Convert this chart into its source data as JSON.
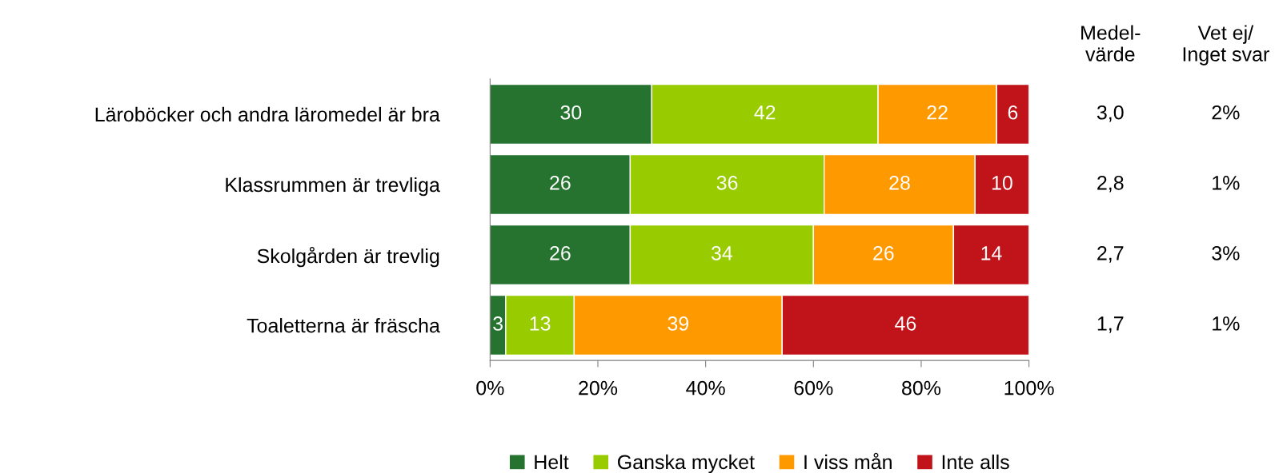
{
  "chart_data": {
    "type": "bar",
    "orientation": "horizontal",
    "stacked": true,
    "categories": [
      "Läroböcker och andra läromedel är bra",
      "Klassrummen är trevliga",
      "Skolgården är trevlig",
      "Toaletterna är fräscha"
    ],
    "series": [
      {
        "name": "Helt",
        "color": "#267330",
        "values": [
          30,
          26,
          26,
          2.9
        ],
        "value_labels": [
          "30",
          "26",
          "26",
          "3"
        ]
      },
      {
        "name": "Ganska mycket",
        "color": "#99cc00",
        "values": [
          42,
          36,
          34,
          12.7
        ],
        "value_labels": [
          "42",
          "36",
          "34",
          "13"
        ]
      },
      {
        "name": "I viss mån",
        "color": "#ff9900",
        "values": [
          22,
          28,
          26,
          38.6
        ],
        "value_labels": [
          "22",
          "28",
          "26",
          "39"
        ]
      },
      {
        "name": "Inte alls",
        "color": "#c0141a",
        "values": [
          6,
          10,
          14,
          45.8
        ],
        "value_labels": [
          "6",
          "10",
          "14",
          "46"
        ]
      }
    ],
    "xlim": [
      0,
      100
    ],
    "xticks": [
      {
        "value": 0,
        "label": "0%"
      },
      {
        "value": 20,
        "label": "20%"
      },
      {
        "value": 40,
        "label": "40%"
      },
      {
        "value": 60,
        "label": "60%"
      },
      {
        "value": 80,
        "label": "80%"
      },
      {
        "value": 100,
        "label": "100%"
      }
    ],
    "annotations": [
      "Medel-\nvärde",
      "3,0",
      "2,8",
      "2,7",
      "1,7",
      "Vet ej/\nInget svar",
      "2%",
      "1%",
      "3%",
      "1%"
    ],
    "legend": "bottom",
    "grid": false
  }
}
